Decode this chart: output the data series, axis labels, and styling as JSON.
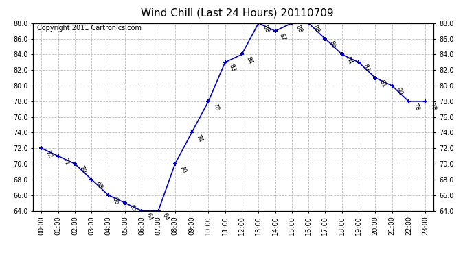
{
  "title": "Wind Chill (Last 24 Hours) 20110709",
  "copyright": "Copyright 2011 Cartronics.com",
  "hours": [
    0,
    1,
    2,
    3,
    4,
    5,
    6,
    7,
    8,
    9,
    10,
    11,
    12,
    13,
    14,
    15,
    16,
    17,
    18,
    19,
    20,
    21,
    22,
    23
  ],
  "values": [
    72,
    71,
    70,
    68,
    66,
    65,
    64,
    64,
    70,
    74,
    78,
    83,
    84,
    88,
    87,
    88,
    88,
    86,
    84,
    83,
    81,
    80,
    78,
    78
  ],
  "x_labels": [
    "00:00",
    "01:00",
    "02:00",
    "03:00",
    "04:00",
    "05:00",
    "06:00",
    "07:00",
    "08:00",
    "09:00",
    "10:00",
    "11:00",
    "12:00",
    "13:00",
    "14:00",
    "15:00",
    "16:00",
    "17:00",
    "18:00",
    "19:00",
    "20:00",
    "21:00",
    "22:00",
    "23:00"
  ],
  "ylim": [
    64.0,
    88.0
  ],
  "yticks": [
    64.0,
    66.0,
    68.0,
    70.0,
    72.0,
    74.0,
    76.0,
    78.0,
    80.0,
    82.0,
    84.0,
    86.0,
    88.0
  ],
  "line_color": "#0000cc",
  "marker": "+",
  "marker_color": "#0000cc",
  "bg_color": "#ffffff",
  "grid_color": "#bbbbbb",
  "title_fontsize": 11,
  "label_fontsize": 7,
  "annotation_fontsize": 6.5,
  "copyright_fontsize": 7
}
